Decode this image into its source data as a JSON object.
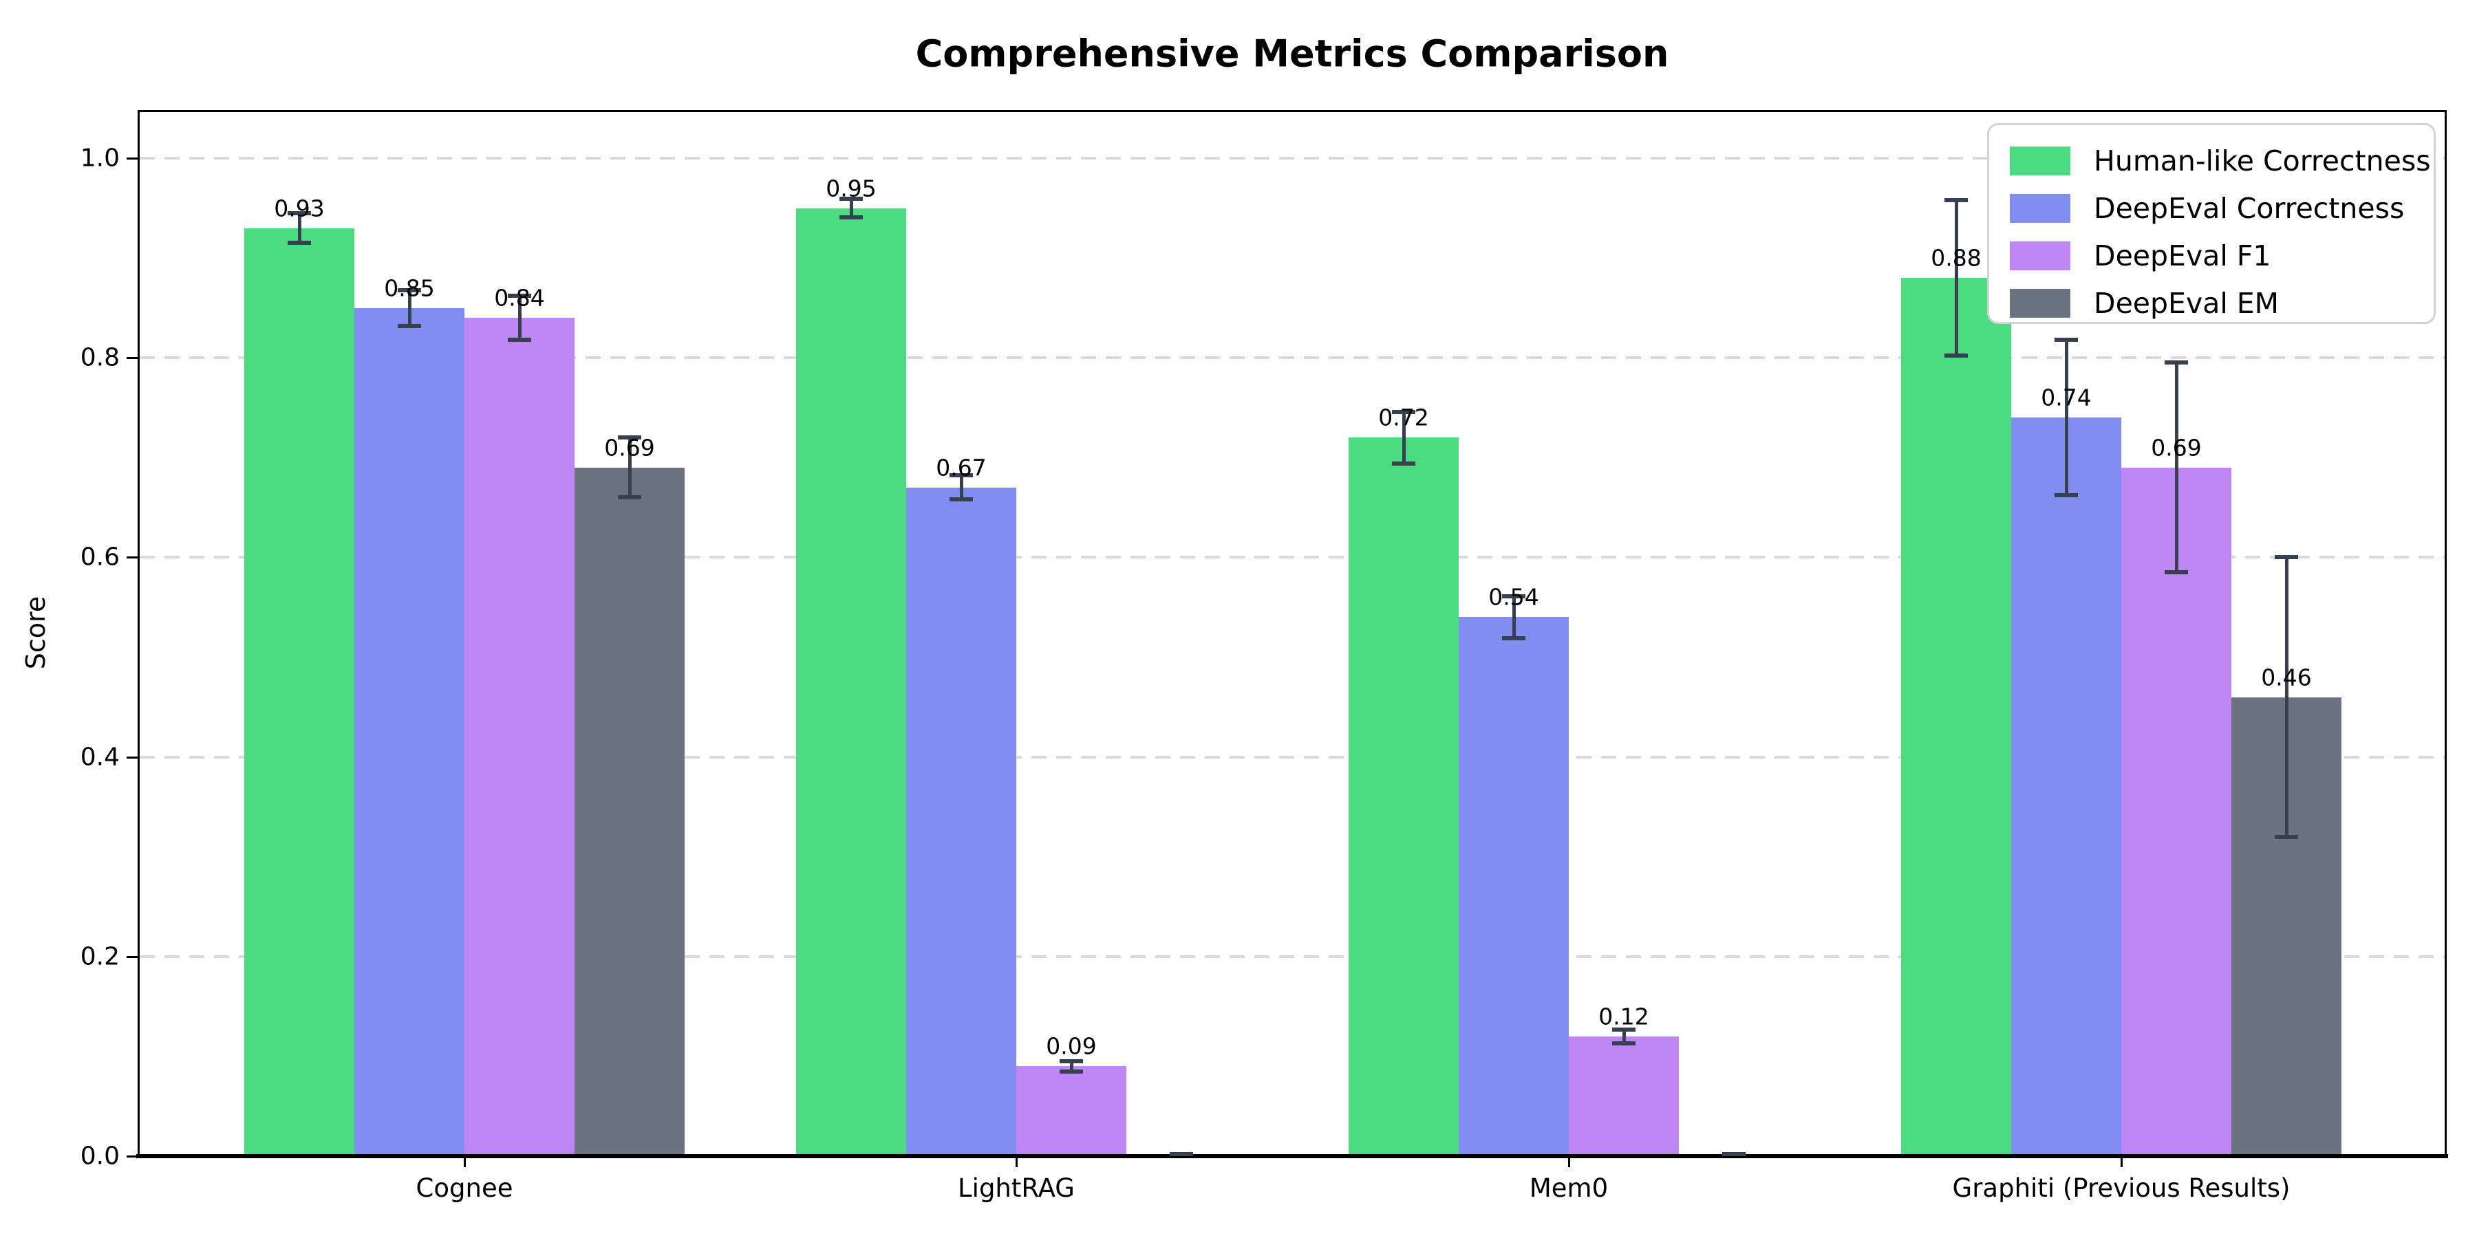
{
  "chart_data": {
    "type": "bar",
    "title": "Comprehensive Metrics Comparison",
    "ylabel": "Score",
    "categories": [
      "Cognee",
      "LightRAG",
      "Mem0",
      "Graphiti (Previous Results)"
    ],
    "series": [
      {
        "name": "Human-like Correctness",
        "color": "#4bdb81",
        "values": [
          0.93,
          0.95,
          0.72,
          0.88
        ],
        "errors": [
          0.015,
          0.009,
          0.026,
          0.078
        ]
      },
      {
        "name": "DeepEval Correctness",
        "color": "#818df0",
        "values": [
          0.85,
          0.67,
          0.54,
          0.74
        ],
        "errors": [
          0.018,
          0.012,
          0.021,
          0.078
        ]
      },
      {
        "name": "DeepEval F1",
        "color": "#bf86f5",
        "values": [
          0.84,
          0.09,
          0.12,
          0.69
        ],
        "errors": [
          0.022,
          0.005,
          0.007,
          0.105
        ]
      },
      {
        "name": "DeepEval EM",
        "color": "#6b7280",
        "values": [
          0.69,
          0.0,
          0.0,
          0.46
        ],
        "errors": [
          0.03,
          0.002,
          0.002,
          0.14
        ]
      }
    ],
    "yticks": [
      0.0,
      0.2,
      0.4,
      0.6,
      0.8,
      1.0
    ],
    "ylim": [
      0.0,
      1.05
    ],
    "grid": "horizontal-dashed",
    "legend_position": "upper-right",
    "value_labels": "shown above bars for non-zero values, formatted to 2 decimals",
    "error_bar_color": "#36404e",
    "gridline_color": "#d9d9d9"
  }
}
